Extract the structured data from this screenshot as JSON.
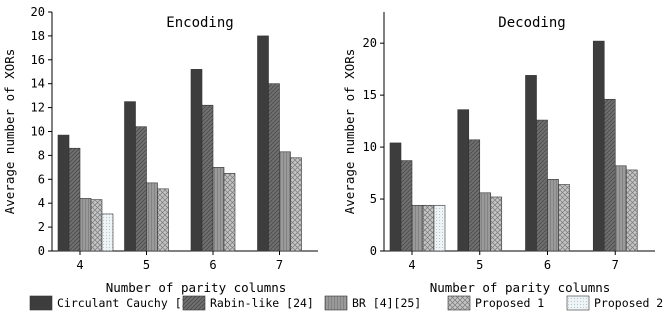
{
  "legend": [
    {
      "label": "Circulant Cauchy [23]",
      "color": "#3d3d3d",
      "pattern": "solid"
    },
    {
      "label": "Rabin-like [24]",
      "color": "#707070",
      "pattern": "diag"
    },
    {
      "label": "BR [4][25]",
      "color": "#9a9a9a",
      "pattern": "vert"
    },
    {
      "label": "Proposed 1",
      "color": "#b5b5b5",
      "pattern": "cross"
    },
    {
      "label": "Proposed 2",
      "color": "#e8eef2",
      "pattern": "dots"
    }
  ],
  "chart_data": [
    {
      "type": "bar",
      "title": "Encoding",
      "xlabel": "Number of parity columns",
      "ylabel": "Average number of XORs",
      "categories": [
        "4",
        "5",
        "6",
        "7"
      ],
      "ylim": [
        0,
        20
      ],
      "yticks": [
        0,
        2,
        4,
        6,
        8,
        10,
        12,
        14,
        16,
        18,
        20
      ],
      "series": [
        {
          "name": "Circulant Cauchy [23]",
          "values": [
            9.7,
            12.5,
            15.2,
            18.0
          ]
        },
        {
          "name": "Rabin-like [24]",
          "values": [
            8.6,
            10.4,
            12.2,
            14.0
          ]
        },
        {
          "name": "BR [4][25]",
          "values": [
            4.4,
            5.7,
            7.0,
            8.3
          ]
        },
        {
          "name": "Proposed 1",
          "values": [
            4.3,
            5.2,
            6.5,
            7.8
          ]
        },
        {
          "name": "Proposed 2",
          "values": [
            3.1,
            null,
            null,
            null
          ]
        }
      ]
    },
    {
      "type": "bar",
      "title": "Decoding",
      "xlabel": "Number of parity columns",
      "ylabel": "Average number of XORs",
      "categories": [
        "4",
        "5",
        "6",
        "7"
      ],
      "ylim": [
        0,
        23
      ],
      "yticks": [
        0,
        5,
        10,
        15,
        20
      ],
      "series": [
        {
          "name": "Circulant Cauchy [23]",
          "values": [
            10.4,
            13.6,
            16.9,
            20.2
          ]
        },
        {
          "name": "Rabin-like [24]",
          "values": [
            8.7,
            10.7,
            12.6,
            14.6
          ]
        },
        {
          "name": "BR [4][25]",
          "values": [
            4.4,
            5.6,
            6.9,
            8.2
          ]
        },
        {
          "name": "Proposed 1",
          "values": [
            4.4,
            5.2,
            6.4,
            7.8
          ]
        },
        {
          "name": "Proposed 2",
          "values": [
            4.4,
            null,
            null,
            null
          ]
        }
      ]
    }
  ]
}
